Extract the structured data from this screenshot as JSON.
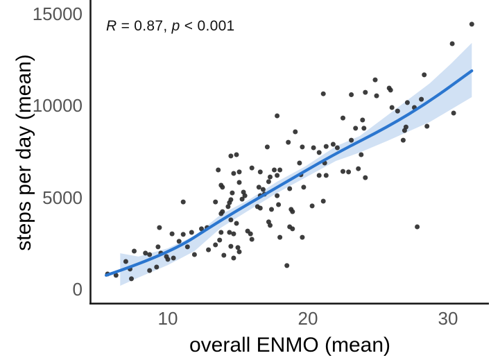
{
  "figure": {
    "background": "#ffffff",
    "annotation": {
      "full_text": "R = 0.87, p < 0.001",
      "segments": [
        {
          "text": "R",
          "italic": true
        },
        {
          "text": " = 0.87, ",
          "italic": false
        },
        {
          "text": "p",
          "italic": true
        },
        {
          "text": " < 0.001",
          "italic": false
        }
      ]
    },
    "colors": {
      "point": "#2d2d2d",
      "line": "#2b76cf",
      "band": "#ccdef3",
      "axis_line": "#1b1b1b",
      "tick_label": "#545454",
      "title": "#000000"
    }
  },
  "chart_data": {
    "type": "scatter",
    "title": "",
    "xlabel": "overall ENMO (mean)",
    "ylabel": "steps per day (mean)",
    "annotation": "R = 0.87, p < 0.001",
    "correlation_R": 0.87,
    "p_value_label": "p < 0.001",
    "xlim": [
      4.5,
      32.9
    ],
    "ylim": [
      -760,
      15760
    ],
    "x_ticks": [
      10,
      20,
      30
    ],
    "y_ticks": [
      0,
      5000,
      10000,
      15000
    ],
    "grid": false,
    "legend": "none",
    "smooth_line": [
      [
        5.6,
        760
      ],
      [
        10.0,
        1890
      ],
      [
        13.8,
        3780
      ],
      [
        17.8,
        5560
      ],
      [
        22.0,
        7410
      ],
      [
        25.7,
        8840
      ],
      [
        28.7,
        10240
      ],
      [
        31.7,
        11900
      ]
    ],
    "confidence_band": [
      {
        "x": 6.6,
        "upper": 1960,
        "lower": 190
      },
      {
        "x": 7.9,
        "upper": 1780,
        "lower": 640
      },
      {
        "x": 10.0,
        "upper": 2230,
        "lower": 1320
      },
      {
        "x": 11.9,
        "upper": 2910,
        "lower": 2080
      },
      {
        "x": 13.8,
        "upper": 4080,
        "lower": 3360
      },
      {
        "x": 15.8,
        "upper": 4880,
        "lower": 4310
      },
      {
        "x": 17.8,
        "upper": 5860,
        "lower": 5250
      },
      {
        "x": 19.8,
        "upper": 6690,
        "lower": 6080
      },
      {
        "x": 22.0,
        "upper": 7790,
        "lower": 6990
      },
      {
        "x": 23.7,
        "upper": 8350,
        "lower": 7450
      },
      {
        "x": 25.7,
        "upper": 9490,
        "lower": 8090
      },
      {
        "x": 28.7,
        "upper": 11220,
        "lower": 9110
      },
      {
        "x": 30.2,
        "upper": 12280,
        "lower": 9790
      },
      {
        "x": 31.7,
        "upper": 13420,
        "lower": 10470
      }
    ],
    "points": [
      [
        5.7,
        830
      ],
      [
        6.3,
        760
      ],
      [
        7.0,
        1510
      ],
      [
        7.3,
        1100
      ],
      [
        7.4,
        570
      ],
      [
        7.6,
        2080
      ],
      [
        8.4,
        1970
      ],
      [
        8.7,
        1890
      ],
      [
        8.7,
        1020
      ],
      [
        9.2,
        1210
      ],
      [
        9.3,
        2310
      ],
      [
        9.4,
        3360
      ],
      [
        9.5,
        1970
      ],
      [
        9.9,
        1780
      ],
      [
        10.0,
        1630
      ],
      [
        10.3,
        3020
      ],
      [
        10.4,
        1700
      ],
      [
        10.8,
        2610
      ],
      [
        11.1,
        4760
      ],
      [
        11.1,
        2990
      ],
      [
        11.4,
        2310
      ],
      [
        11.7,
        3100
      ],
      [
        11.9,
        1890
      ],
      [
        12.4,
        3290
      ],
      [
        12.8,
        3360
      ],
      [
        12.9,
        2150
      ],
      [
        13.4,
        4760
      ],
      [
        13.4,
        2420
      ],
      [
        13.6,
        6500
      ],
      [
        13.7,
        2680
      ],
      [
        13.8,
        5670
      ],
      [
        13.8,
        4120
      ],
      [
        13.8,
        3100
      ],
      [
        13.9,
        5560
      ],
      [
        13.9,
        4230
      ],
      [
        14.0,
        1850
      ],
      [
        14.3,
        4500
      ],
      [
        14.4,
        4720
      ],
      [
        14.4,
        3100
      ],
      [
        14.5,
        7260
      ],
      [
        14.5,
        4880
      ],
      [
        14.5,
        3780
      ],
      [
        14.5,
        2340
      ],
      [
        14.6,
        5250
      ],
      [
        14.7,
        6310
      ],
      [
        14.7,
        3020
      ],
      [
        14.7,
        1700
      ],
      [
        14.9,
        7330
      ],
      [
        14.9,
        3590
      ],
      [
        15.0,
        2270
      ],
      [
        15.1,
        6390
      ],
      [
        15.1,
        5820
      ],
      [
        15.1,
        2040
      ],
      [
        15.3,
        4910
      ],
      [
        15.4,
        5290
      ],
      [
        15.5,
        5100
      ],
      [
        15.7,
        3170
      ],
      [
        15.9,
        3020
      ],
      [
        16.0,
        6610
      ],
      [
        16.0,
        2720
      ],
      [
        16.4,
        4500
      ],
      [
        16.5,
        5560
      ],
      [
        16.6,
        6390
      ],
      [
        16.6,
        5100
      ],
      [
        16.6,
        4420
      ],
      [
        16.8,
        5440
      ],
      [
        16.9,
        5180
      ],
      [
        17.1,
        7750
      ],
      [
        17.2,
        5860
      ],
      [
        17.2,
        3670
      ],
      [
        17.3,
        6120
      ],
      [
        17.3,
        3480
      ],
      [
        17.4,
        4350
      ],
      [
        17.6,
        6500
      ],
      [
        17.8,
        9450
      ],
      [
        17.8,
        6200
      ],
      [
        17.8,
        5100
      ],
      [
        17.9,
        4610
      ],
      [
        18.0,
        6500
      ],
      [
        18.0,
        2830
      ],
      [
        18.5,
        1290
      ],
      [
        18.6,
        8010
      ],
      [
        18.7,
        5480
      ],
      [
        18.7,
        3400
      ],
      [
        18.8,
        4350
      ],
      [
        18.9,
        4230
      ],
      [
        18.9,
        3290
      ],
      [
        19.1,
        8580
      ],
      [
        19.4,
        6880
      ],
      [
        19.5,
        6240
      ],
      [
        19.6,
        7750
      ],
      [
        19.6,
        2830
      ],
      [
        19.7,
        5560
      ],
      [
        20.3,
        4540
      ],
      [
        20.4,
        7710
      ],
      [
        20.8,
        7450
      ],
      [
        20.8,
        6200
      ],
      [
        21.1,
        10650
      ],
      [
        21.1,
        4800
      ],
      [
        21.2,
        6880
      ],
      [
        21.3,
        7780
      ],
      [
        21.3,
        6200
      ],
      [
        21.8,
        7900
      ],
      [
        22.1,
        7710
      ],
      [
        22.5,
        9330
      ],
      [
        22.5,
        6420
      ],
      [
        22.9,
        6390
      ],
      [
        23.1,
        10600
      ],
      [
        23.1,
        8120
      ],
      [
        23.4,
        8770
      ],
      [
        23.6,
        6570
      ],
      [
        23.8,
        7330
      ],
      [
        23.9,
        9220
      ],
      [
        24.0,
        8770
      ],
      [
        24.1,
        10730
      ],
      [
        24.1,
        6080
      ],
      [
        24.8,
        11410
      ],
      [
        24.9,
        10540
      ],
      [
        25.8,
        10960
      ],
      [
        25.9,
        10850
      ],
      [
        26.0,
        9900
      ],
      [
        26.4,
        9710
      ],
      [
        26.8,
        8120
      ],
      [
        26.9,
        8650
      ],
      [
        27.0,
        8840
      ],
      [
        27.1,
        10170
      ],
      [
        27.6,
        9900
      ],
      [
        27.8,
        3400
      ],
      [
        28.1,
        10350
      ],
      [
        28.3,
        11680
      ],
      [
        28.5,
        8880
      ],
      [
        30.3,
        13380
      ],
      [
        30.4,
        9600
      ],
      [
        31.7,
        14440
      ]
    ]
  }
}
